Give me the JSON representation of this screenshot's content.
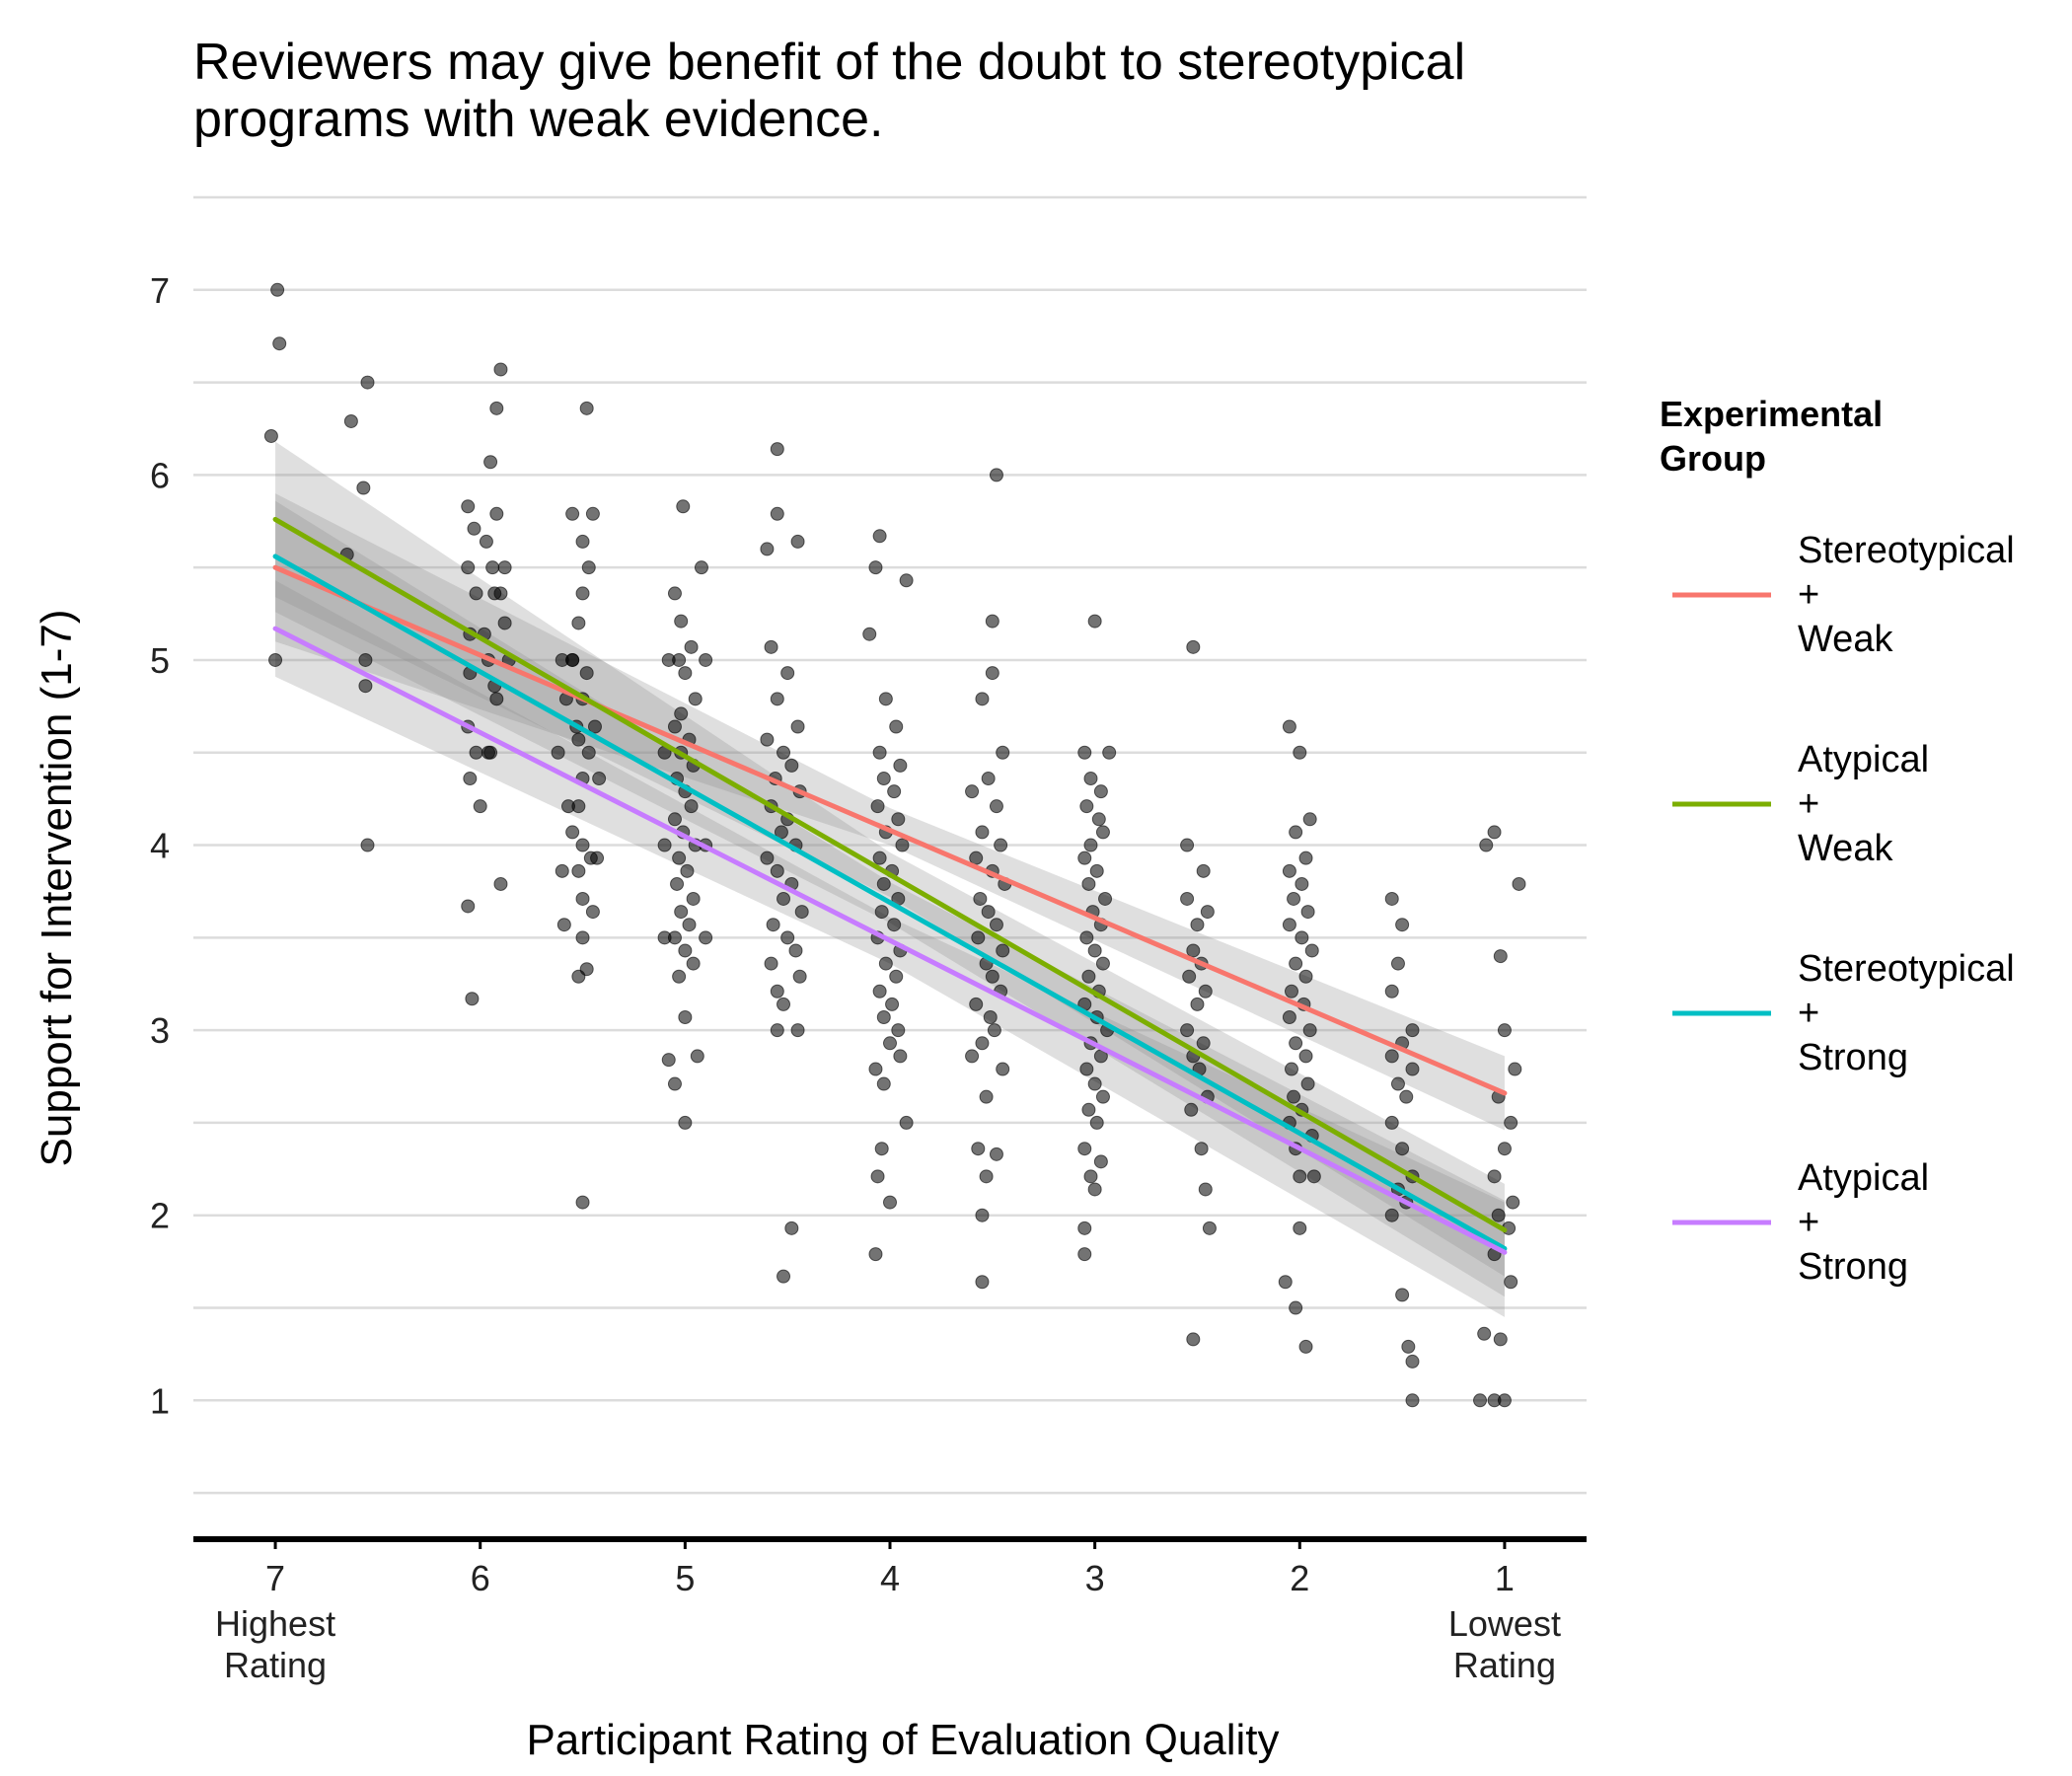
{
  "chart_data": {
    "type": "scatter",
    "title_lines": [
      "Reviewers may give benefit of the doubt to stereotypical",
      "programs with weak evidence."
    ],
    "xlabel": "Participant Rating of Evaluation Quality",
    "ylabel": "Support for Intervention (1-7)",
    "x_reversed": true,
    "xlim": [
      0.6,
      7.4
    ],
    "ylim": [
      0.25,
      7.5
    ],
    "x_ticks": [
      {
        "value": 7,
        "label": "7",
        "sub": [
          "Highest",
          "Rating"
        ]
      },
      {
        "value": 6,
        "label": "6",
        "sub": []
      },
      {
        "value": 5,
        "label": "5",
        "sub": []
      },
      {
        "value": 4,
        "label": "4",
        "sub": []
      },
      {
        "value": 3,
        "label": "3",
        "sub": []
      },
      {
        "value": 2,
        "label": "2",
        "sub": []
      },
      {
        "value": 1,
        "label": "1",
        "sub": [
          "Lowest",
          "Rating"
        ]
      }
    ],
    "y_ticks": [
      1,
      2,
      3,
      4,
      5,
      6,
      7
    ],
    "y_minor_grid": [
      0.5,
      1.5,
      2.5,
      3.5,
      4.5,
      5.5,
      6.5,
      7.5
    ],
    "grid": true,
    "legend_position": "right",
    "legend_title_lines": [
      "Experimental",
      "Group"
    ],
    "series": [
      {
        "name": "Stereotypical + Weak",
        "legend_lines": [
          "Stereotypical",
          "+",
          "Weak"
        ],
        "color": "#F8766D",
        "line": {
          "x": [
            7,
            1
          ],
          "y": [
            5.5,
            2.66
          ]
        },
        "ci": {
          "x": [
            7,
            4,
            1
          ],
          "upper": [
            5.9,
            4.2,
            2.86
          ],
          "lower": [
            5.1,
            4.0,
            2.46
          ]
        }
      },
      {
        "name": "Atypical + Weak",
        "legend_lines": [
          "Atypical",
          "+",
          "Weak"
        ],
        "color": "#7CAE00",
        "line": {
          "x": [
            7,
            1
          ],
          "y": [
            5.76,
            1.92
          ]
        },
        "ci": {
          "x": [
            7,
            4,
            1
          ],
          "upper": [
            6.18,
            3.96,
            2.17
          ],
          "lower": [
            5.34,
            3.72,
            1.67
          ]
        }
      },
      {
        "name": "Stereotypical + Strong",
        "legend_lines": [
          "Stereotypical",
          "+",
          "Strong"
        ],
        "color": "#00BFC4",
        "line": {
          "x": [
            7,
            1
          ],
          "y": [
            5.56,
            1.82
          ]
        },
        "ci": {
          "x": [
            7,
            4,
            1
          ],
          "upper": [
            5.86,
            3.8,
            2.08
          ],
          "lower": [
            5.26,
            3.58,
            1.56
          ]
        }
      },
      {
        "name": "Atypical + Strong",
        "legend_lines": [
          "Atypical",
          "+",
          "Strong"
        ],
        "color": "#C77CFF",
        "line": {
          "x": [
            7,
            1
          ],
          "y": [
            5.17,
            1.8
          ]
        },
        "ci": {
          "x": [
            7,
            4,
            1
          ],
          "upper": [
            5.43,
            3.61,
            2.07
          ],
          "lower": [
            4.91,
            3.36,
            1.45
          ]
        }
      }
    ],
    "points": [
      [
        6.99,
        7.0
      ],
      [
        6.98,
        6.71
      ],
      [
        7.02,
        6.21
      ],
      [
        7.0,
        5.0
      ],
      [
        6.55,
        6.5
      ],
      [
        6.57,
        5.93
      ],
      [
        6.63,
        6.29
      ],
      [
        6.65,
        5.57
      ],
      [
        6.56,
        5.0
      ],
      [
        6.56,
        4.86
      ],
      [
        6.55,
        4.0
      ],
      [
        5.9,
        6.57
      ],
      [
        5.92,
        6.36
      ],
      [
        5.95,
        6.07
      ],
      [
        5.92,
        5.79
      ],
      [
        5.88,
        5.5
      ],
      [
        5.9,
        5.36
      ],
      [
        5.88,
        5.2
      ],
      [
        5.86,
        5.0
      ],
      [
        5.92,
        4.79
      ],
      [
        5.95,
        4.5
      ],
      [
        5.9,
        3.79
      ],
      [
        6.06,
        5.83
      ],
      [
        6.03,
        5.71
      ],
      [
        6.06,
        5.5
      ],
      [
        6.02,
        5.36
      ],
      [
        6.05,
        5.14
      ],
      [
        6.05,
        4.93
      ],
      [
        6.06,
        4.64
      ],
      [
        6.02,
        4.5
      ],
      [
        6.05,
        4.36
      ],
      [
        6.0,
        4.21
      ],
      [
        6.06,
        3.67
      ],
      [
        6.04,
        3.17
      ],
      [
        5.97,
        5.64
      ],
      [
        5.94,
        5.5
      ],
      [
        5.98,
        5.14
      ],
      [
        5.93,
        4.86
      ],
      [
        5.96,
        4.5
      ],
      [
        5.93,
        5.36
      ],
      [
        5.96,
        5.0
      ],
      [
        5.55,
        5.79
      ],
      [
        5.5,
        5.64
      ],
      [
        5.47,
        5.5
      ],
      [
        5.5,
        5.36
      ],
      [
        5.52,
        5.2
      ],
      [
        5.55,
        5.0
      ],
      [
        5.48,
        4.93
      ],
      [
        5.5,
        4.79
      ],
      [
        5.53,
        4.64
      ],
      [
        5.47,
        4.5
      ],
      [
        5.5,
        4.36
      ],
      [
        5.52,
        4.21
      ],
      [
        5.55,
        4.07
      ],
      [
        5.5,
        4.0
      ],
      [
        5.46,
        3.93
      ],
      [
        5.52,
        3.86
      ],
      [
        5.5,
        3.71
      ],
      [
        5.45,
        3.64
      ],
      [
        5.5,
        3.5
      ],
      [
        5.48,
        3.33
      ],
      [
        5.52,
        3.29
      ],
      [
        5.48,
        6.36
      ],
      [
        5.45,
        5.79
      ],
      [
        5.5,
        2.07
      ],
      [
        5.6,
        5.0
      ],
      [
        5.58,
        4.79
      ],
      [
        5.62,
        4.5
      ],
      [
        5.57,
        4.21
      ],
      [
        5.6,
        3.86
      ],
      [
        5.59,
        3.57
      ],
      [
        5.44,
        4.64
      ],
      [
        5.42,
        4.36
      ],
      [
        5.43,
        3.93
      ],
      [
        5.55,
        5.0
      ],
      [
        5.52,
        4.57
      ],
      [
        5.05,
        5.36
      ],
      [
        5.02,
        5.21
      ],
      [
        4.97,
        5.07
      ],
      [
        5.03,
        5.0
      ],
      [
        5.0,
        4.93
      ],
      [
        4.95,
        4.79
      ],
      [
        5.02,
        4.71
      ],
      [
        5.05,
        4.64
      ],
      [
        4.98,
        4.57
      ],
      [
        5.02,
        4.5
      ],
      [
        4.96,
        4.43
      ],
      [
        5.04,
        4.36
      ],
      [
        5.0,
        4.29
      ],
      [
        4.97,
        4.21
      ],
      [
        5.05,
        4.14
      ],
      [
        5.01,
        4.07
      ],
      [
        4.95,
        4.0
      ],
      [
        5.03,
        3.93
      ],
      [
        4.99,
        3.86
      ],
      [
        5.04,
        3.79
      ],
      [
        4.96,
        3.71
      ],
      [
        5.02,
        3.64
      ],
      [
        4.98,
        3.57
      ],
      [
        5.05,
        3.5
      ],
      [
        5.0,
        3.43
      ],
      [
        4.96,
        3.36
      ],
      [
        5.03,
        3.29
      ],
      [
        5.01,
        5.83
      ],
      [
        4.92,
        5.5
      ],
      [
        5.0,
        3.07
      ],
      [
        4.94,
        2.86
      ],
      [
        5.08,
        2.84
      ],
      [
        5.05,
        2.71
      ],
      [
        5.0,
        2.5
      ],
      [
        5.08,
        5.0
      ],
      [
        5.1,
        4.5
      ],
      [
        5.1,
        4.0
      ],
      [
        5.1,
        3.5
      ],
      [
        4.9,
        5.0
      ],
      [
        4.9,
        4.0
      ],
      [
        4.9,
        3.5
      ],
      [
        4.55,
        6.14
      ],
      [
        4.55,
        5.79
      ],
      [
        4.6,
        5.6
      ],
      [
        4.45,
        5.64
      ],
      [
        4.58,
        5.07
      ],
      [
        4.5,
        4.93
      ],
      [
        4.55,
        4.79
      ],
      [
        4.45,
        4.64
      ],
      [
        4.6,
        4.57
      ],
      [
        4.52,
        4.5
      ],
      [
        4.48,
        4.43
      ],
      [
        4.56,
        4.36
      ],
      [
        4.44,
        4.29
      ],
      [
        4.58,
        4.21
      ],
      [
        4.5,
        4.14
      ],
      [
        4.53,
        4.07
      ],
      [
        4.46,
        4.0
      ],
      [
        4.6,
        3.93
      ],
      [
        4.55,
        3.86
      ],
      [
        4.48,
        3.79
      ],
      [
        4.52,
        3.71
      ],
      [
        4.43,
        3.64
      ],
      [
        4.57,
        3.57
      ],
      [
        4.5,
        3.5
      ],
      [
        4.46,
        3.43
      ],
      [
        4.58,
        3.36
      ],
      [
        4.44,
        3.29
      ],
      [
        4.55,
        3.21
      ],
      [
        4.52,
        3.14
      ],
      [
        4.55,
        3.0
      ],
      [
        4.45,
        3.0
      ],
      [
        4.48,
        1.93
      ],
      [
        4.52,
        1.67
      ],
      [
        4.05,
        5.67
      ],
      [
        4.07,
        5.5
      ],
      [
        4.1,
        5.14
      ],
      [
        4.02,
        4.79
      ],
      [
        3.97,
        4.64
      ],
      [
        4.05,
        4.5
      ],
      [
        3.95,
        4.43
      ],
      [
        4.03,
        4.36
      ],
      [
        3.98,
        4.29
      ],
      [
        4.06,
        4.21
      ],
      [
        3.96,
        4.14
      ],
      [
        4.02,
        4.07
      ],
      [
        3.94,
        4.0
      ],
      [
        4.05,
        3.93
      ],
      [
        3.99,
        3.86
      ],
      [
        4.03,
        3.79
      ],
      [
        3.96,
        3.71
      ],
      [
        4.04,
        3.64
      ],
      [
        3.98,
        3.57
      ],
      [
        4.06,
        3.5
      ],
      [
        3.95,
        3.43
      ],
      [
        4.02,
        3.36
      ],
      [
        3.97,
        3.29
      ],
      [
        4.05,
        3.21
      ],
      [
        3.99,
        3.14
      ],
      [
        4.03,
        3.07
      ],
      [
        3.96,
        3.0
      ],
      [
        4.0,
        2.93
      ],
      [
        4.07,
        2.79
      ],
      [
        4.03,
        2.71
      ],
      [
        3.95,
        2.86
      ],
      [
        3.92,
        2.5
      ],
      [
        4.04,
        2.36
      ],
      [
        4.06,
        2.21
      ],
      [
        4.0,
        2.07
      ],
      [
        4.07,
        1.79
      ],
      [
        3.92,
        5.43
      ],
      [
        3.48,
        6.0
      ],
      [
        3.5,
        5.21
      ],
      [
        3.5,
        4.93
      ],
      [
        3.55,
        4.79
      ],
      [
        3.45,
        4.5
      ],
      [
        3.52,
        4.36
      ],
      [
        3.6,
        4.29
      ],
      [
        3.48,
        4.21
      ],
      [
        3.55,
        4.07
      ],
      [
        3.46,
        4.0
      ],
      [
        3.58,
        3.93
      ],
      [
        3.5,
        3.86
      ],
      [
        3.44,
        3.79
      ],
      [
        3.56,
        3.71
      ],
      [
        3.52,
        3.64
      ],
      [
        3.48,
        3.57
      ],
      [
        3.57,
        3.5
      ],
      [
        3.45,
        3.43
      ],
      [
        3.53,
        3.36
      ],
      [
        3.5,
        3.29
      ],
      [
        3.46,
        3.21
      ],
      [
        3.58,
        3.14
      ],
      [
        3.51,
        3.07
      ],
      [
        3.49,
        3.0
      ],
      [
        3.55,
        2.93
      ],
      [
        3.6,
        2.86
      ],
      [
        3.45,
        2.79
      ],
      [
        3.53,
        2.64
      ],
      [
        3.57,
        2.36
      ],
      [
        3.48,
        2.33
      ],
      [
        3.53,
        2.21
      ],
      [
        3.55,
        2.0
      ],
      [
        3.55,
        1.64
      ],
      [
        3.0,
        5.21
      ],
      [
        3.05,
        4.5
      ],
      [
        2.93,
        4.5
      ],
      [
        3.02,
        4.36
      ],
      [
        2.97,
        4.29
      ],
      [
        3.04,
        4.21
      ],
      [
        2.98,
        4.14
      ],
      [
        2.96,
        4.07
      ],
      [
        3.02,
        4.0
      ],
      [
        3.05,
        3.93
      ],
      [
        2.99,
        3.86
      ],
      [
        3.03,
        3.79
      ],
      [
        2.95,
        3.71
      ],
      [
        3.01,
        3.64
      ],
      [
        2.97,
        3.57
      ],
      [
        3.04,
        3.5
      ],
      [
        3.0,
        3.43
      ],
      [
        2.96,
        3.36
      ],
      [
        3.03,
        3.29
      ],
      [
        2.98,
        3.21
      ],
      [
        3.05,
        3.14
      ],
      [
        2.99,
        3.07
      ],
      [
        2.94,
        3.0
      ],
      [
        3.02,
        2.93
      ],
      [
        2.97,
        2.86
      ],
      [
        3.04,
        2.79
      ],
      [
        3.0,
        2.71
      ],
      [
        2.96,
        2.64
      ],
      [
        3.03,
        2.57
      ],
      [
        2.99,
        2.5
      ],
      [
        3.05,
        2.36
      ],
      [
        2.97,
        2.29
      ],
      [
        3.02,
        2.21
      ],
      [
        3.0,
        2.14
      ],
      [
        3.05,
        1.93
      ],
      [
        3.05,
        1.79
      ],
      [
        2.52,
        5.07
      ],
      [
        2.55,
        4.0
      ],
      [
        2.47,
        3.86
      ],
      [
        2.55,
        3.71
      ],
      [
        2.45,
        3.64
      ],
      [
        2.5,
        3.57
      ],
      [
        2.52,
        3.43
      ],
      [
        2.48,
        3.36
      ],
      [
        2.54,
        3.29
      ],
      [
        2.46,
        3.21
      ],
      [
        2.5,
        3.14
      ],
      [
        2.55,
        3.0
      ],
      [
        2.47,
        2.93
      ],
      [
        2.52,
        2.86
      ],
      [
        2.49,
        2.79
      ],
      [
        2.45,
        2.64
      ],
      [
        2.53,
        2.57
      ],
      [
        2.48,
        2.36
      ],
      [
        2.46,
        2.14
      ],
      [
        2.44,
        1.93
      ],
      [
        2.52,
        1.33
      ],
      [
        2.05,
        4.64
      ],
      [
        2.0,
        4.5
      ],
      [
        1.95,
        4.14
      ],
      [
        2.02,
        4.07
      ],
      [
        1.97,
        3.93
      ],
      [
        2.05,
        3.86
      ],
      [
        1.99,
        3.79
      ],
      [
        2.03,
        3.71
      ],
      [
        1.96,
        3.64
      ],
      [
        2.05,
        3.57
      ],
      [
        1.99,
        3.5
      ],
      [
        1.94,
        3.43
      ],
      [
        2.02,
        3.36
      ],
      [
        1.97,
        3.29
      ],
      [
        2.04,
        3.21
      ],
      [
        1.98,
        3.14
      ],
      [
        2.05,
        3.07
      ],
      [
        1.95,
        3.0
      ],
      [
        2.02,
        2.93
      ],
      [
        1.97,
        2.86
      ],
      [
        2.04,
        2.79
      ],
      [
        1.96,
        2.71
      ],
      [
        2.03,
        2.64
      ],
      [
        1.99,
        2.57
      ],
      [
        2.05,
        2.5
      ],
      [
        1.94,
        2.43
      ],
      [
        2.02,
        2.36
      ],
      [
        2.0,
        2.21
      ],
      [
        1.93,
        2.21
      ],
      [
        2.0,
        1.93
      ],
      [
        2.02,
        1.5
      ],
      [
        1.97,
        1.29
      ],
      [
        2.07,
        1.64
      ],
      [
        1.55,
        3.71
      ],
      [
        1.5,
        3.57
      ],
      [
        1.52,
        3.36
      ],
      [
        1.55,
        3.21
      ],
      [
        1.45,
        3.0
      ],
      [
        1.5,
        2.93
      ],
      [
        1.55,
        2.86
      ],
      [
        1.45,
        2.79
      ],
      [
        1.52,
        2.71
      ],
      [
        1.48,
        2.64
      ],
      [
        1.55,
        2.5
      ],
      [
        1.5,
        2.36
      ],
      [
        1.45,
        2.21
      ],
      [
        1.52,
        2.14
      ],
      [
        1.48,
        2.07
      ],
      [
        1.55,
        2.0
      ],
      [
        1.5,
        1.57
      ],
      [
        1.47,
        1.29
      ],
      [
        1.45,
        1.21
      ],
      [
        1.45,
        1.0
      ],
      [
        1.05,
        4.07
      ],
      [
        0.93,
        3.79
      ],
      [
        1.02,
        3.4
      ],
      [
        1.0,
        3.0
      ],
      [
        0.95,
        2.79
      ],
      [
        1.03,
        2.64
      ],
      [
        0.97,
        2.5
      ],
      [
        1.0,
        2.36
      ],
      [
        1.05,
        2.21
      ],
      [
        0.96,
        2.07
      ],
      [
        1.03,
        2.0
      ],
      [
        0.98,
        1.93
      ],
      [
        1.05,
        1.79
      ],
      [
        0.97,
        1.64
      ],
      [
        1.1,
        1.36
      ],
      [
        1.02,
        1.33
      ],
      [
        1.0,
        1.0
      ],
      [
        1.05,
        1.0
      ],
      [
        1.12,
        1.0
      ],
      [
        1.09,
        4.0
      ]
    ]
  }
}
